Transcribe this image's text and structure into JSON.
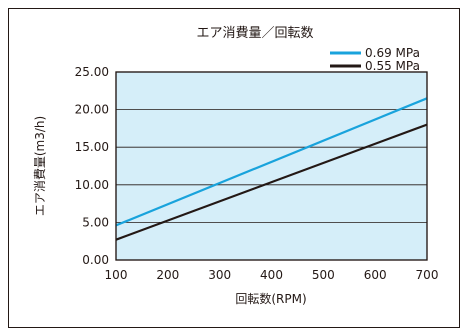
{
  "chart_data": {
    "type": "line",
    "title": "エア消費量／回転数",
    "xlabel": "回転数(RPM)",
    "ylabel": "エア消費量(m3/h)",
    "x_ticks": [
      "100",
      "200",
      "300",
      "400",
      "500",
      "600",
      "700"
    ],
    "y_ticks": [
      "0.00",
      "5.00",
      "10.00",
      "15.00",
      "20.00",
      "25.00"
    ],
    "xlim": [
      100,
      700
    ],
    "ylim": [
      0,
      25
    ],
    "grid": true,
    "legend_position": "top-right",
    "plot_background": "#d5eef9",
    "series": [
      {
        "name": "0.69 MPa",
        "color": "#19a3dc",
        "x": [
          100,
          700
        ],
        "y": [
          4.6,
          21.5
        ]
      },
      {
        "name": "0.55 MPa",
        "color": "#231815",
        "x": [
          100,
          700
        ],
        "y": [
          2.7,
          18.0
        ]
      }
    ]
  }
}
